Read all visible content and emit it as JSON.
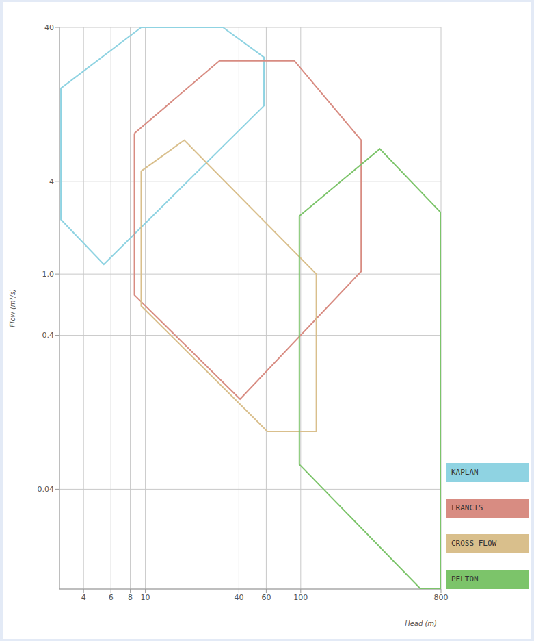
{
  "chart_data": {
    "type": "polygon",
    "x_label": "Head (m)",
    "y_label": "Flow (m³/s)",
    "log": true,
    "grid": true,
    "legend": "right",
    "xlim": [
      2.8,
      800
    ],
    "xticks": [
      4,
      6,
      8,
      10,
      40,
      60,
      100,
      800
    ],
    "ylim": [
      0.009,
      40
    ],
    "yticks": [
      0.04,
      0.4,
      {
        "value": 1,
        "label": "1.0"
      },
      4,
      40
    ],
    "series": [
      {
        "name": "KAPLAN",
        "color": "#8fd3e2",
        "x": [
          2.86,
          2.86,
          5.4,
          58,
          58,
          31.6,
          9.4
        ],
        "y": [
          16.1,
          2.26,
          1.155,
          12.4,
          25.6,
          40,
          40
        ]
      },
      {
        "name": "FRANCIS",
        "color": "#d88c82",
        "x": [
          8.5,
          8.5,
          40.7,
          245,
          245,
          91,
          30
        ],
        "y": [
          8.2,
          0.73,
          0.154,
          1.04,
          7.4,
          24.3,
          24.3
        ]
      },
      {
        "name": "CROSS FLOW",
        "color": "#d9bf8c",
        "x": [
          9.4,
          9.4,
          61,
          126,
          126,
          17.8
        ],
        "y": [
          4.66,
          0.62,
          0.095,
          0.095,
          1.0,
          7.4
        ]
      },
      {
        "name": "PELTON",
        "color": "#7cc46a",
        "x": [
          98,
          98,
          592,
          800,
          800,
          323
        ],
        "y": [
          2.38,
          0.058,
          0.009,
          0.009,
          2.5,
          6.5
        ]
      }
    ]
  }
}
